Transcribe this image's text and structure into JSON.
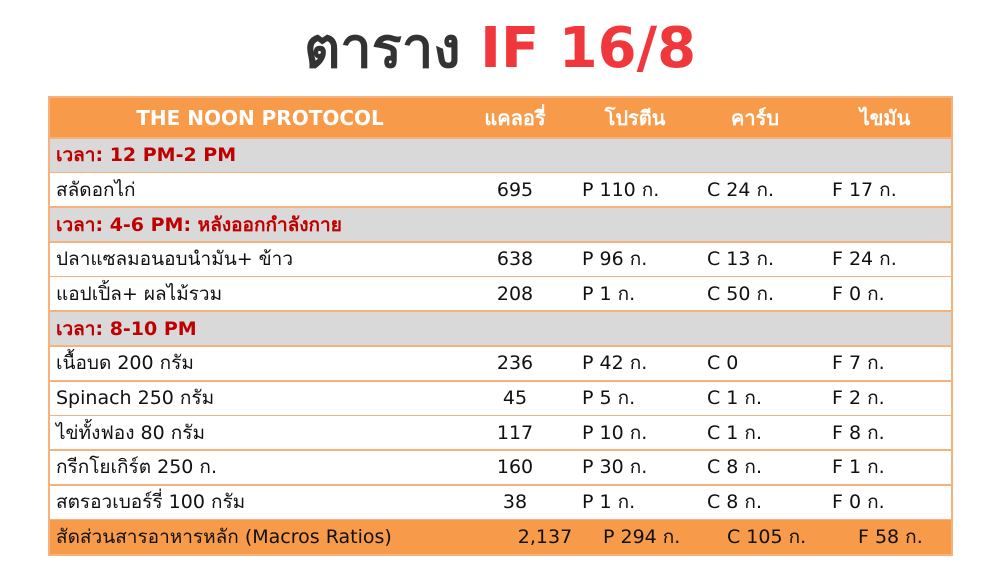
{
  "title": {
    "part1": "ตาราง",
    "part2": "IF 16/8"
  },
  "colors": {
    "header_bg": "#f79a4a",
    "section_bg": "#d9d9d9",
    "section_text": "#c00000",
    "title_dark": "#333333",
    "title_red": "#f0383c"
  },
  "table": {
    "headers": [
      "THE NOON PROTOCOL",
      "แคลอรี่",
      "โปรตีน",
      "คาร์บ",
      "ไขมัน"
    ],
    "rows": [
      {
        "type": "section",
        "label": "เวลา: 12 PM-2 PM"
      },
      {
        "type": "item",
        "cells": [
          "สลัดอกไก่",
          "695",
          "P 110 ก.",
          "C 24 ก.",
          "F 17 ก."
        ]
      },
      {
        "type": "section",
        "label": "เวลา: 4-6 PM: หลังออกกำลังกาย"
      },
      {
        "type": "item",
        "cells": [
          "ปลาแซลมอนอบนำมัน+ ข้าว",
          "638",
          "P 96 ก.",
          "C 13 ก.",
          "F 24 ก."
        ]
      },
      {
        "type": "item",
        "cells": [
          "แอปเปิ้ล+ ผลไม้รวม",
          "208",
          "P 1 ก.",
          "C 50 ก.",
          "F 0 ก."
        ]
      },
      {
        "type": "section",
        "label": "เวลา: 8-10 PM"
      },
      {
        "type": "item",
        "cells": [
          "เนื้อบด 200 กรัม",
          "236",
          "P 42 ก.",
          "C 0",
          "F 7 ก."
        ]
      },
      {
        "type": "item",
        "cells": [
          "Spinach 250 กรัม",
          "45",
          "P 5 ก.",
          "C 1 ก.",
          "F 2 ก."
        ]
      },
      {
        "type": "item",
        "cells": [
          "ไข่ทั้งฟอง 80 กรัม",
          "117",
          "P 10 ก.",
          "C 1 ก.",
          "F 8 ก."
        ]
      },
      {
        "type": "item",
        "cells": [
          "กรีกโยเกิร์ต 250 ก.",
          "160",
          "P 30 ก.",
          "C 8 ก.",
          "F 1 ก."
        ]
      },
      {
        "type": "item",
        "cells": [
          "สตรอวเบอร์รี่ 100 กรัม",
          "38",
          "P 1 ก.",
          "C 8 ก.",
          "F 0 ก."
        ]
      }
    ],
    "total": [
      "สัดส่วนสารอาหารหลัก (Macros Ratios)",
      "2,137",
      "P 294 ก.",
      "C 105 ก.",
      "F 58 ก."
    ]
  }
}
